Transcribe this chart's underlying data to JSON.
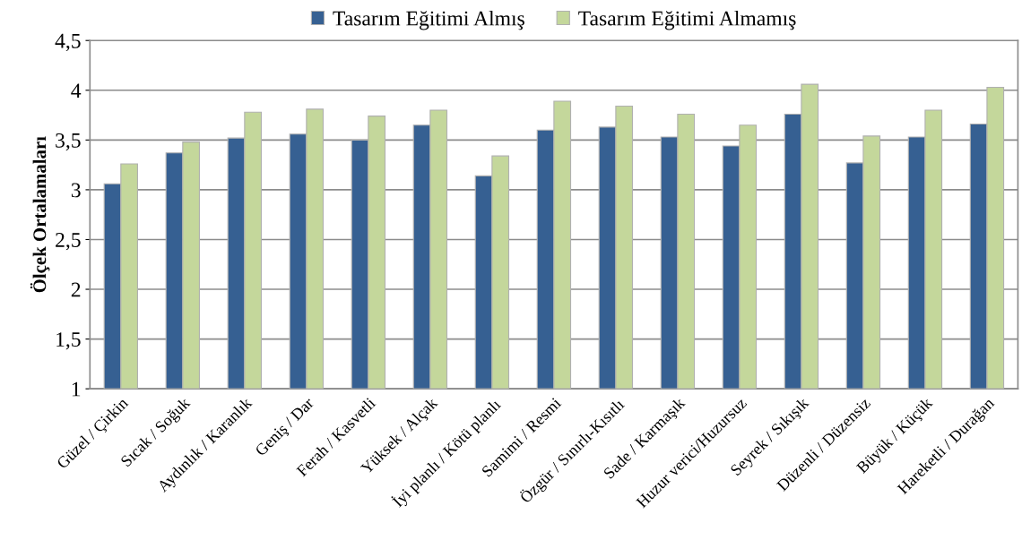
{
  "chart_data": {
    "type": "bar",
    "ylabel": "Ölçek Ortalamaları",
    "categories": [
      "Güzel / Çirkin",
      "Sıcak / Soğuk",
      "Aydınlık / Karanlık",
      "Geniş / Dar",
      "Ferah / Kasvetli",
      "Yüksek / Alçak",
      "İyi planlı / Kötü planlı",
      "Samimi / Resmi",
      "Özgür / Sınırlı-Kısıtlı",
      "Sade / Karmaşık",
      "Huzur verici/Huzursuz",
      "Seyrek / Sıkışık",
      "Düzenli / Düzensiz",
      "Büyük / Küçük",
      "Hareketli / Durağan"
    ],
    "series": [
      {
        "name": "Tasarım Eğitimi Almış",
        "color": "#366092",
        "values": [
          3.06,
          3.37,
          3.52,
          3.56,
          3.5,
          3.65,
          3.14,
          3.6,
          3.63,
          3.53,
          3.44,
          3.76,
          3.27,
          3.53,
          3.66
        ]
      },
      {
        "name": "Tasarım Eğitimi Almamış",
        "color": "#c4d79b",
        "values": [
          3.26,
          3.48,
          3.78,
          3.81,
          3.74,
          3.8,
          3.34,
          3.89,
          3.84,
          3.76,
          3.65,
          4.06,
          3.54,
          3.8,
          4.03
        ]
      }
    ],
    "ylim": [
      1,
      4.5
    ],
    "yticks": [
      {
        "value": 1,
        "label": "1"
      },
      {
        "value": 1.5,
        "label": "1,5"
      },
      {
        "value": 2,
        "label": "2"
      },
      {
        "value": 2.5,
        "label": "2,5"
      },
      {
        "value": 3,
        "label": "3"
      },
      {
        "value": 3.5,
        "label": "3,5"
      },
      {
        "value": 4,
        "label": "4"
      },
      {
        "value": 4.5,
        "label": "4,5"
      }
    ],
    "grid": "y",
    "legend": "top"
  }
}
